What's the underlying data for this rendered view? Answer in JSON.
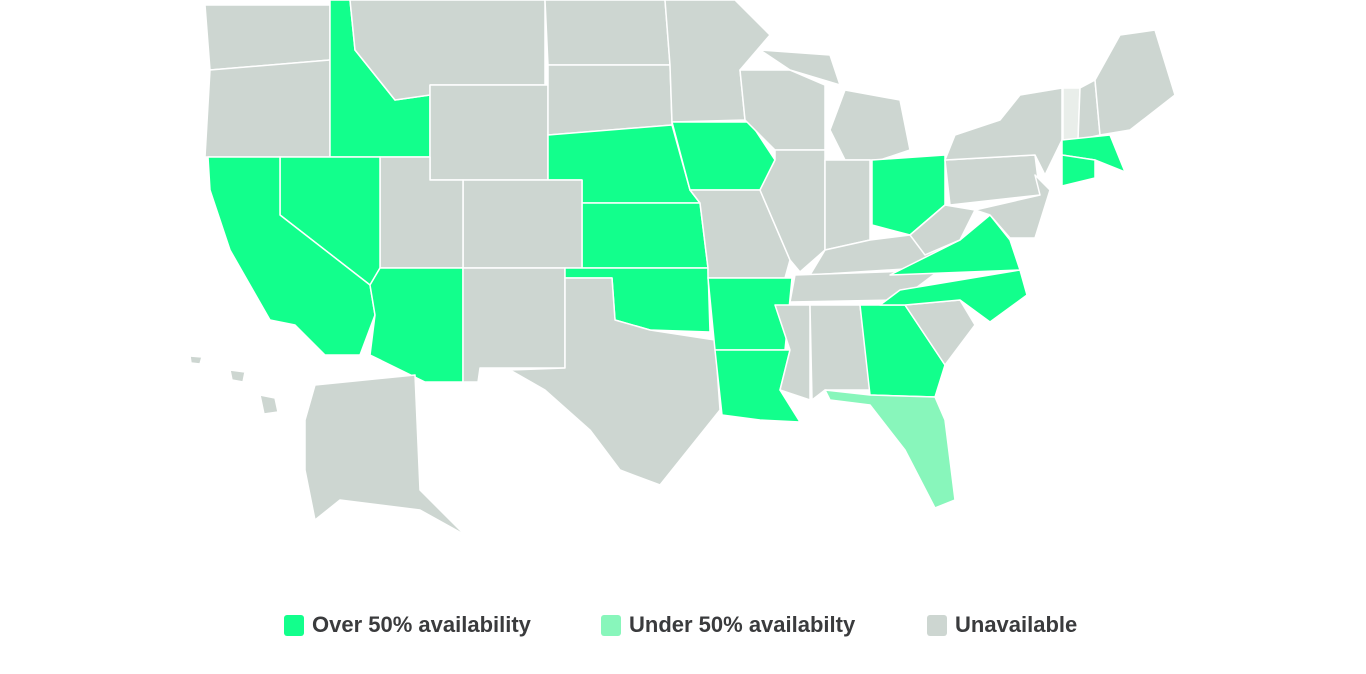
{
  "legend": {
    "items": [
      {
        "label": "Over 50% availability",
        "color": "#12ff8c"
      },
      {
        "label": "Under 50% availabilty",
        "color": "#88f6bb"
      },
      {
        "label": "Unavailable",
        "color": "#cdd6d1"
      }
    ]
  }
}
